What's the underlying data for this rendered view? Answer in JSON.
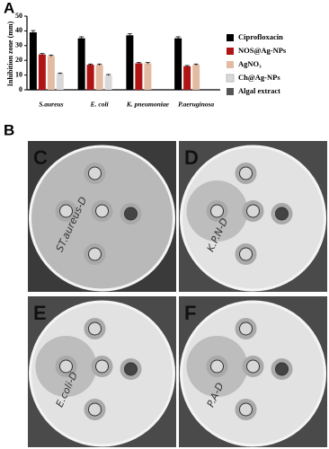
{
  "panel_labels": [
    "A",
    "B"
  ],
  "chart_data": {
    "type": "bar",
    "y_label": "Inhibition zone (mm)",
    "categories": [
      "S.aureus",
      "E. coli",
      "K. pneumoniae",
      "P.aeruginosa"
    ],
    "series": [
      {
        "name": "Ciprofloxacin",
        "color": "#000000",
        "values": [
          39,
          35,
          37,
          35
        ],
        "errors": [
          1.2,
          1,
          1,
          1
        ]
      },
      {
        "name": "NOS@Ag-NPs",
        "color": "#b01515",
        "values": [
          24,
          17,
          18,
          16
        ],
        "errors": [
          0.6,
          0.5,
          0.5,
          0.5
        ]
      },
      {
        "name": "AgNO₃",
        "color": "#e2bba3",
        "values": [
          23,
          17,
          18,
          17
        ],
        "errors": [
          0.6,
          0.5,
          0.5,
          0.5
        ]
      },
      {
        "name": "Ch@Ag-NPs",
        "color": "#d9d9d9",
        "values": [
          11,
          10,
          0,
          0
        ],
        "errors": [
          0.4,
          0.4,
          0,
          0
        ]
      },
      {
        "name": "Algal extract",
        "color": "#555555",
        "values": [
          0,
          0,
          0,
          0
        ],
        "errors": [
          0,
          0,
          0,
          0
        ]
      }
    ],
    "ylim": [
      0,
      50
    ],
    "yticks": [
      0,
      10,
      20,
      30,
      40,
      50
    ],
    "legend": "right"
  },
  "plates": [
    {
      "label": "C",
      "note": "ST.aureus-D"
    },
    {
      "label": "D",
      "note": "K.P.N-D"
    },
    {
      "label": "E",
      "note": "E.coli-D"
    },
    {
      "label": "F",
      "note": "P.A-D"
    }
  ]
}
